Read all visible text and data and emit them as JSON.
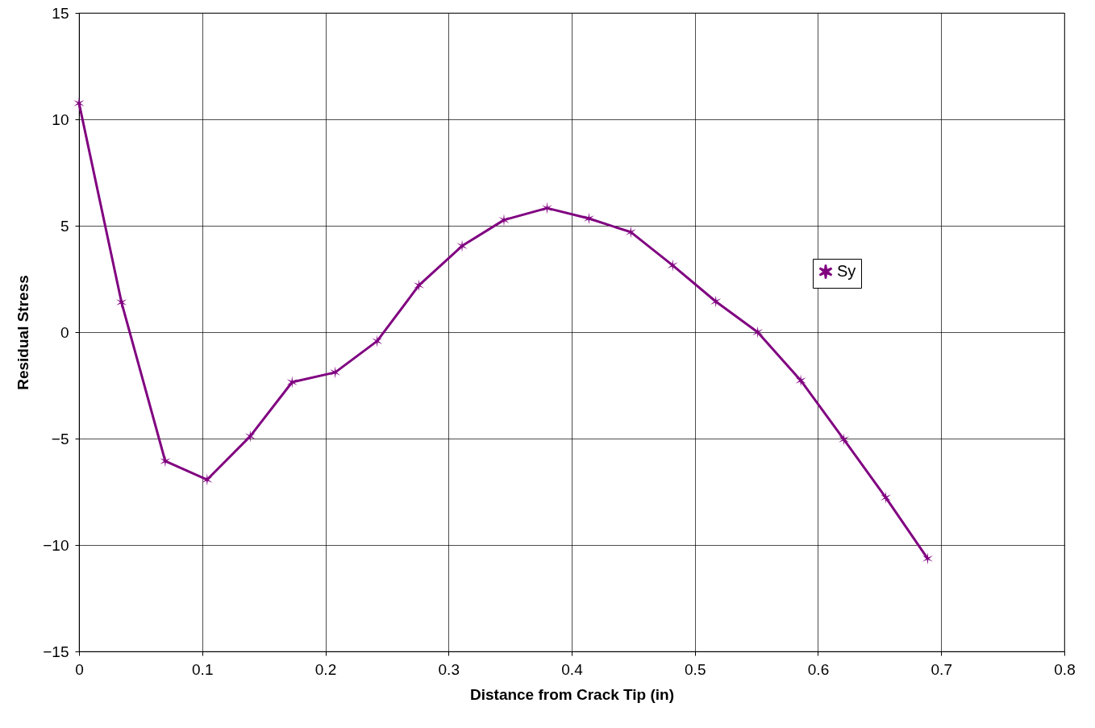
{
  "chart_data": {
    "type": "line",
    "xlabel": "Distance from Crack Tip (in)",
    "ylabel": "Residual Stress",
    "x": [
      0,
      0.0345,
      0.07,
      0.104,
      0.139,
      0.173,
      0.208,
      0.242,
      0.276,
      0.311,
      0.345,
      0.38,
      0.414,
      0.448,
      0.482,
      0.517,
      0.551,
      0.586,
      0.621,
      0.655,
      0.689
    ],
    "series": [
      {
        "name": "Sy",
        "color": "#800080",
        "values": [
          10.76,
          1.4,
          -6.06,
          -6.93,
          -4.89,
          -2.35,
          -1.89,
          -0.42,
          2.2,
          4.05,
          5.27,
          5.83,
          5.34,
          4.7,
          3.14,
          1.44,
          0.0,
          -2.27,
          -5.04,
          -7.77,
          -10.64
        ]
      }
    ],
    "xlim": [
      0,
      0.8
    ],
    "xticks": [
      0,
      0.1,
      0.2,
      0.3,
      0.4,
      0.5,
      0.6,
      0.7,
      0.8
    ],
    "ylim": [
      -15,
      15
    ],
    "yticks": [
      -15,
      -10,
      -5,
      0,
      5,
      10,
      15
    ],
    "grid": true,
    "legend": "right",
    "marker": "cross",
    "line_style": "solid"
  }
}
